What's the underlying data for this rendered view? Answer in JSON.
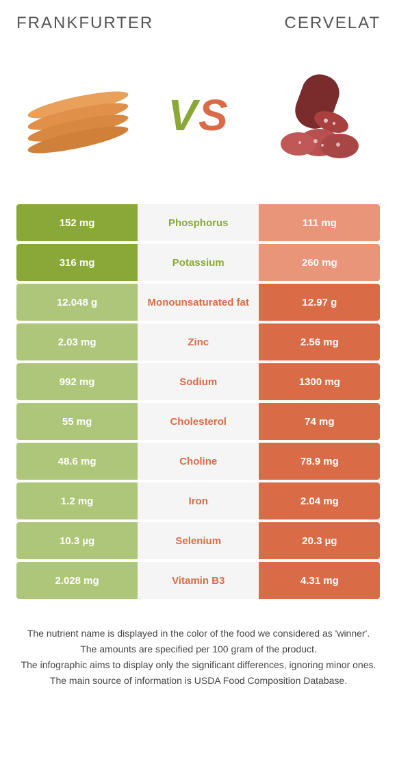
{
  "header": {
    "left_title": "Frankfurter",
    "right_title": "Cervelat"
  },
  "vs": {
    "v": "V",
    "s": "S"
  },
  "colors": {
    "green_solid": "#8aa838",
    "green_light": "#aec67a",
    "orange_solid": "#d96c47",
    "orange_light": "#e89579",
    "row_bg": "#f5f5f5"
  },
  "rows": [
    {
      "left": "152 mg",
      "nutrient": "Phosphorus",
      "right": "111 mg",
      "winner": "left"
    },
    {
      "left": "316 mg",
      "nutrient": "Potassium",
      "right": "260 mg",
      "winner": "left"
    },
    {
      "left": "12.048 g",
      "nutrient": "Monounsaturated fat",
      "right": "12.97 g",
      "winner": "right"
    },
    {
      "left": "2.03 mg",
      "nutrient": "Zinc",
      "right": "2.56 mg",
      "winner": "right"
    },
    {
      "left": "992 mg",
      "nutrient": "Sodium",
      "right": "1300 mg",
      "winner": "right"
    },
    {
      "left": "55 mg",
      "nutrient": "Cholesterol",
      "right": "74 mg",
      "winner": "right"
    },
    {
      "left": "48.6 mg",
      "nutrient": "Choline",
      "right": "78.9 mg",
      "winner": "right"
    },
    {
      "left": "1.2 mg",
      "nutrient": "Iron",
      "right": "2.04 mg",
      "winner": "right"
    },
    {
      "left": "10.3 µg",
      "nutrient": "Selenium",
      "right": "20.3 µg",
      "winner": "right"
    },
    {
      "left": "2.028 mg",
      "nutrient": "Vitamin B3",
      "right": "4.31 mg",
      "winner": "right"
    }
  ],
  "footer": {
    "line1": "The nutrient name is displayed in the color of the food we considered as 'winner'.",
    "line2": "The amounts are specified per 100 gram of the product.",
    "line3": "The infographic aims to display only the significant differences, ignoring minor ones.",
    "line4": "The main source of information is USDA Food Composition Database."
  }
}
